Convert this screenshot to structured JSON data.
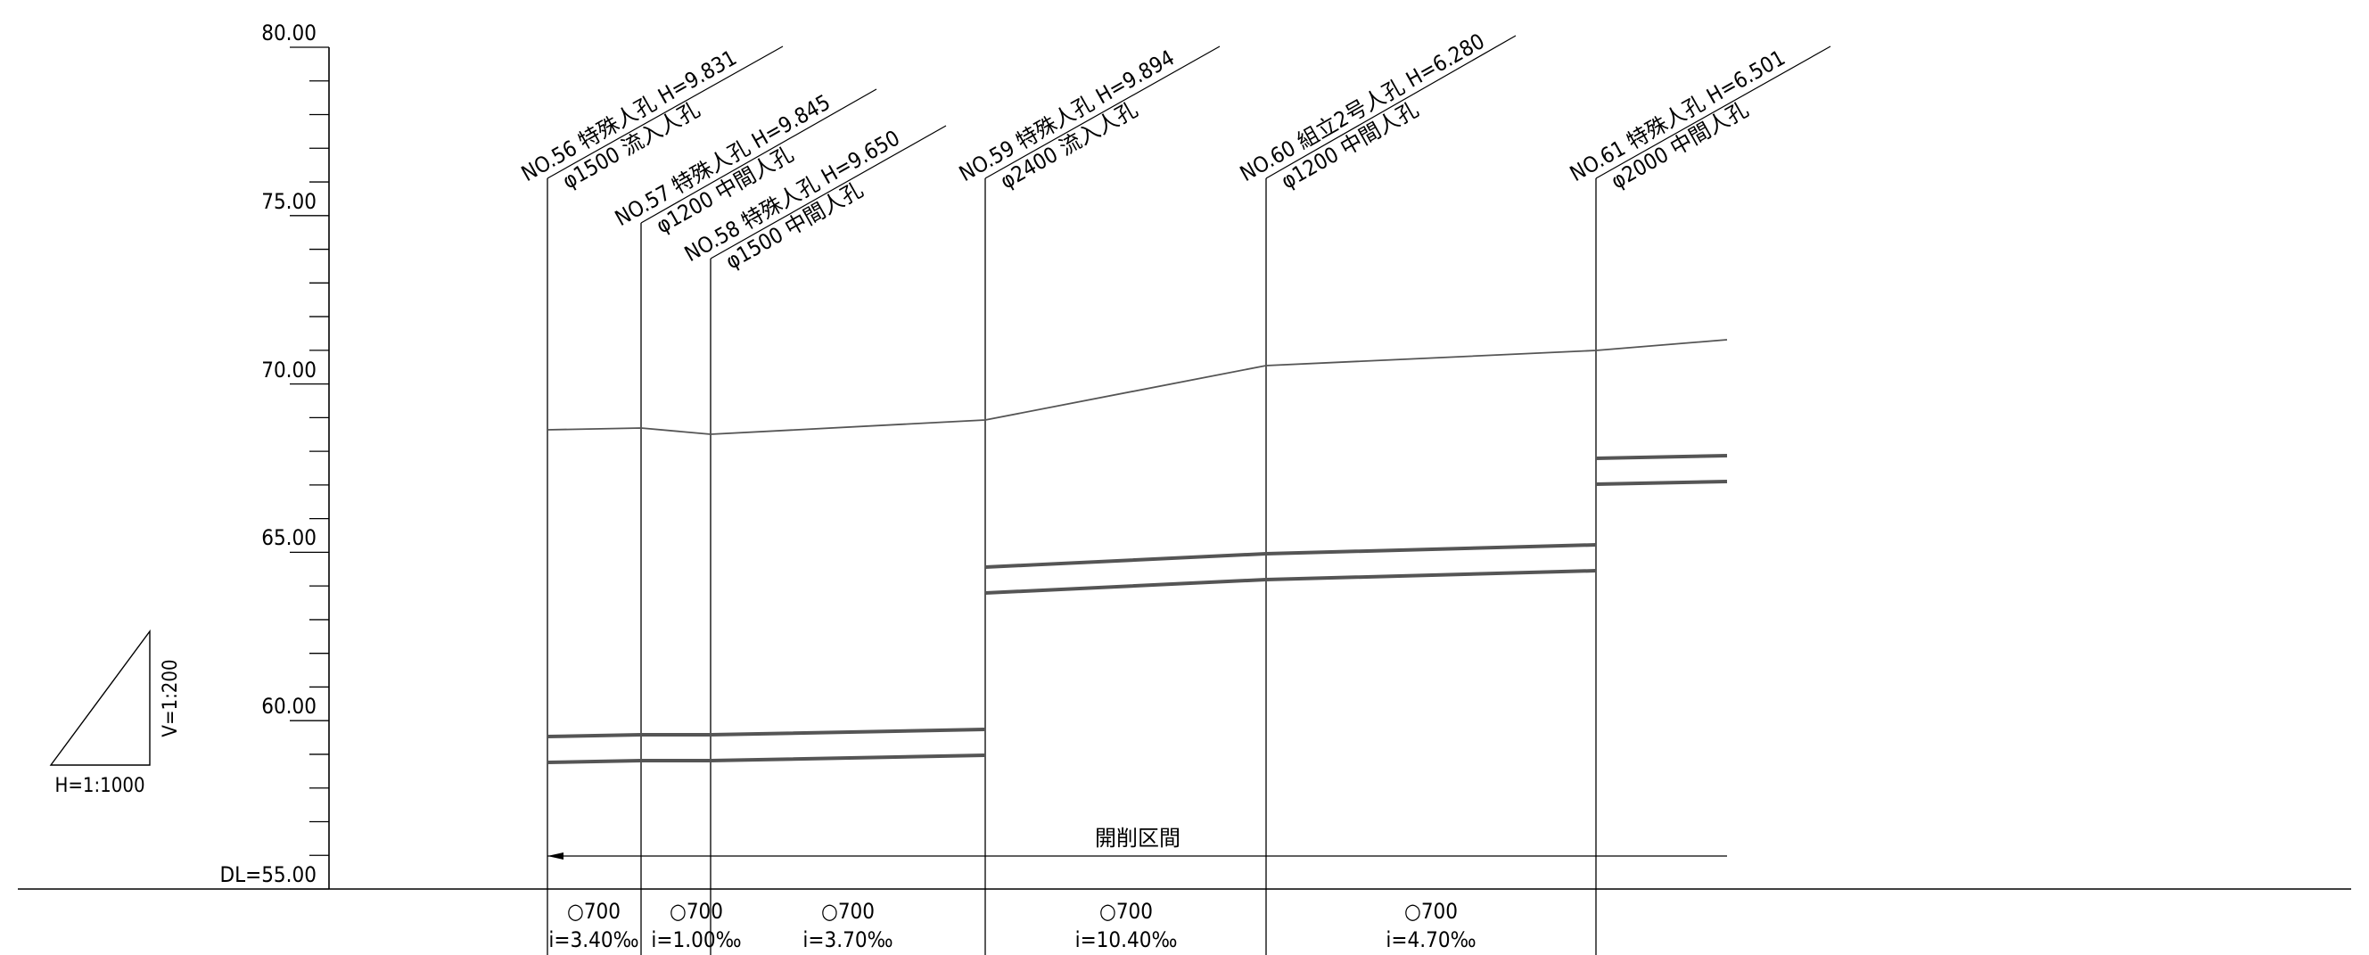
{
  "axis": {
    "unit_labels": [
      "80.00",
      "75.00",
      "70.00",
      "65.00",
      "60.00",
      "DL=55.00"
    ],
    "ticks": [
      80,
      75,
      70,
      65,
      60,
      55
    ],
    "min": 55,
    "max": 80
  },
  "scale": {
    "horizontal": "H=1:1000",
    "vertical": "V=1:200"
  },
  "manholes": [
    {
      "id": "no56",
      "line1": "NO.56 特殊人孔 H=9.831",
      "line2": "φ1500 流入人孔"
    },
    {
      "id": "no57",
      "line1": "NO.57 特殊人孔 H=9.845",
      "line2": "φ1200 中間人孔"
    },
    {
      "id": "no58",
      "line1": "NO.58 特殊人孔 H=9.650",
      "line2": "φ1500 中間人孔"
    },
    {
      "id": "no59",
      "line1": "NO.59 特殊人孔 H=9.894",
      "line2": "φ2400 流入人孔"
    },
    {
      "id": "no60",
      "line1": "NO.60 組立2号人孔 H=6.280",
      "line2": "φ1200 中間人孔"
    },
    {
      "id": "no61",
      "line1": "NO.61 特殊人孔 H=6.501",
      "line2": "φ2000 中間人孔"
    }
  ],
  "excavation_label": "開削区間",
  "segments": [
    {
      "pipe": "○700",
      "slope": "i=3.40‰"
    },
    {
      "pipe": "○700",
      "slope": "i=1.00‰"
    },
    {
      "pipe": "○700",
      "slope": "i=3.70‰"
    },
    {
      "pipe": "○700",
      "slope": "i=10.40‰"
    },
    {
      "pipe": "○700",
      "slope": "i=4.70‰"
    }
  ]
}
